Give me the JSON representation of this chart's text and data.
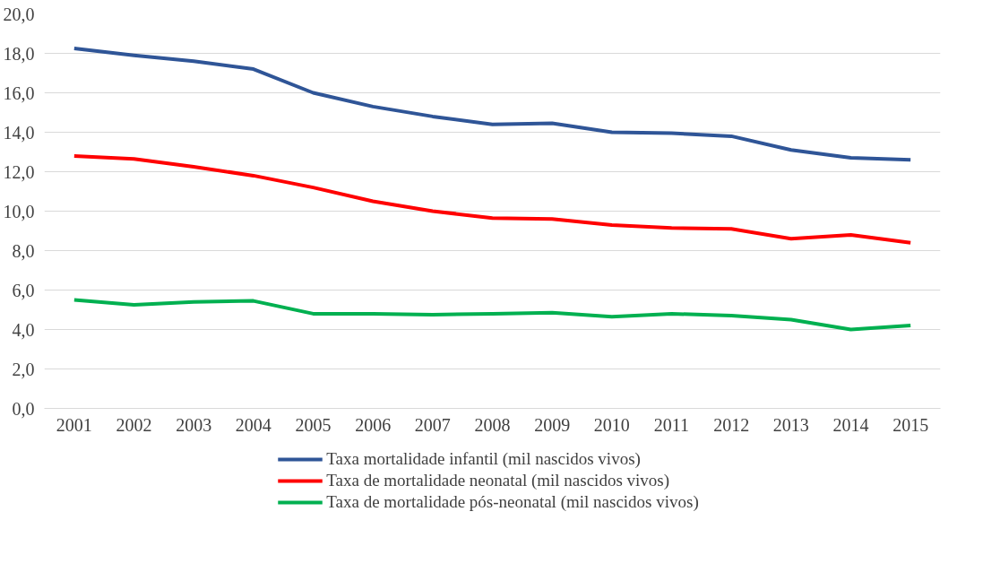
{
  "chart_data": {
    "type": "line",
    "categories": [
      "2001",
      "2002",
      "2003",
      "2004",
      "2005",
      "2006",
      "2007",
      "2008",
      "2009",
      "2010",
      "2011",
      "2012",
      "2013",
      "2014",
      "2015"
    ],
    "series": [
      {
        "name": "Taxa mortalidade infantil (mil nascidos vivos)",
        "color": "#2f5597",
        "values": [
          18.25,
          17.9,
          17.6,
          17.2,
          16.0,
          15.3,
          14.8,
          14.4,
          14.45,
          14.0,
          13.95,
          13.8,
          13.1,
          12.7,
          12.6
        ]
      },
      {
        "name": "Taxa de mortalidade neonatal (mil nascidos vivos)",
        "color": "#ff0000",
        "values": [
          12.8,
          12.65,
          12.25,
          11.8,
          11.2,
          10.5,
          10.0,
          9.65,
          9.6,
          9.3,
          9.15,
          9.1,
          8.6,
          8.8,
          8.4
        ]
      },
      {
        "name": "Taxa de mortalidade pós-neonatal (mil nascidos vivos)",
        "color": "#00b050",
        "values": [
          5.5,
          5.25,
          5.4,
          5.45,
          4.8,
          4.8,
          4.75,
          4.8,
          4.85,
          4.65,
          4.8,
          4.7,
          4.5,
          4.0,
          4.2
        ]
      }
    ],
    "ylim": [
      0,
      20
    ],
    "yticks": [
      {
        "value": 0,
        "label": "0,0"
      },
      {
        "value": 2,
        "label": "2,0"
      },
      {
        "value": 4,
        "label": "4,0"
      },
      {
        "value": 6,
        "label": "6,0"
      },
      {
        "value": 8,
        "label": "8,0"
      },
      {
        "value": 10,
        "label": "10,0"
      },
      {
        "value": 12,
        "label": "12,0"
      },
      {
        "value": 14,
        "label": "14,0"
      },
      {
        "value": 16,
        "label": "16,0"
      },
      {
        "value": 18,
        "label": "18,0"
      },
      {
        "value": 20,
        "label": "20,0"
      }
    ],
    "grid": "y",
    "legend": "bottom",
    "marker": "none",
    "line_style": "solid"
  }
}
